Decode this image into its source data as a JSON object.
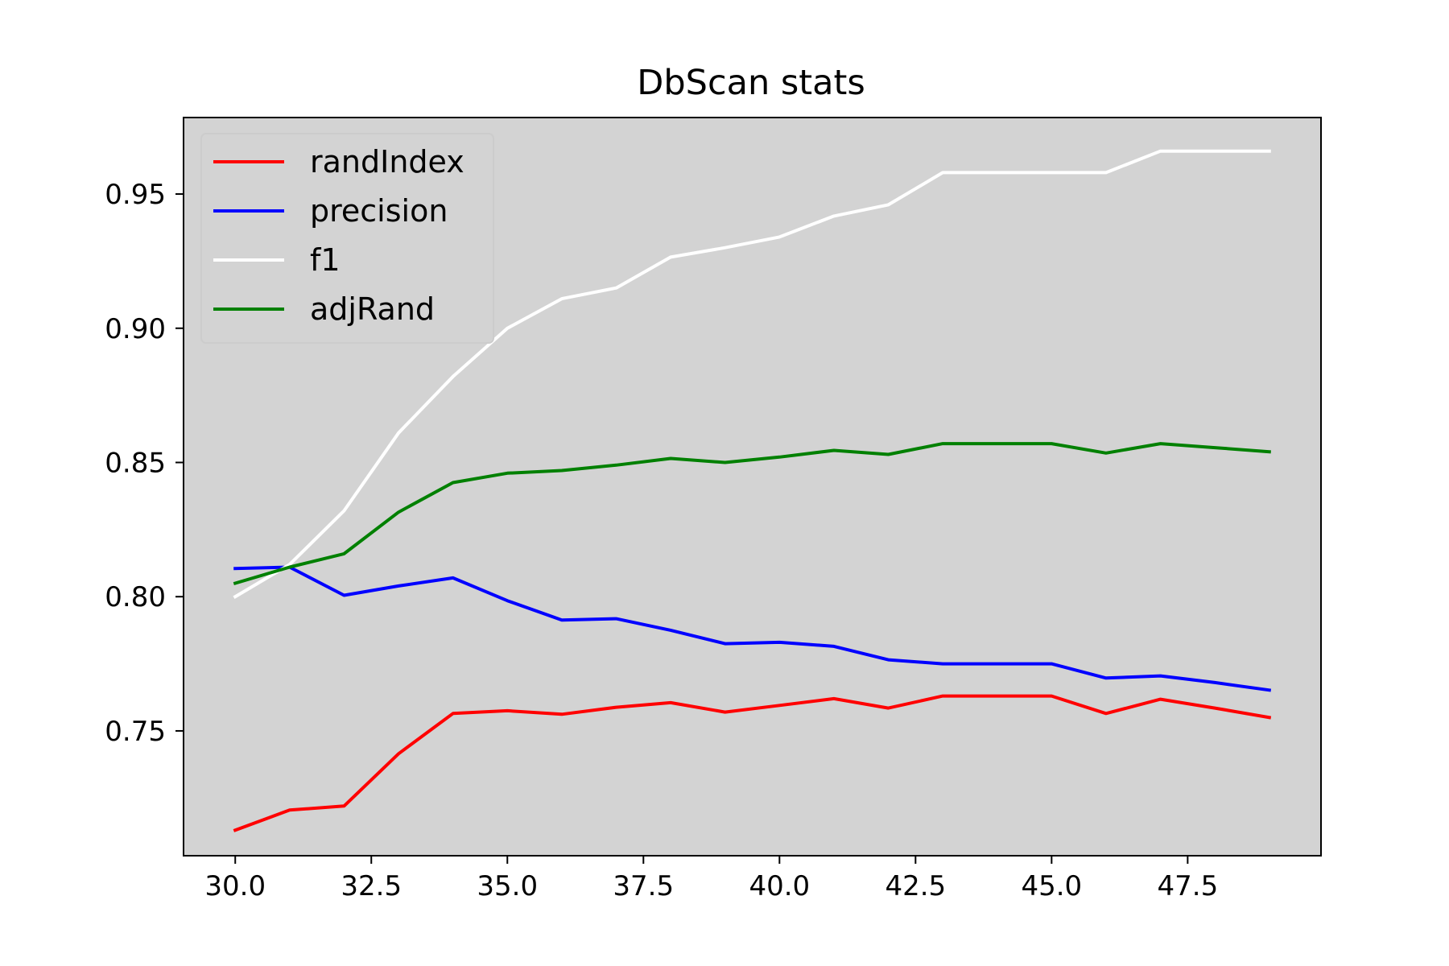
{
  "chart_data": {
    "type": "line",
    "title": "DbScan stats",
    "xlabel": "",
    "ylabel": "",
    "xlim": [
      29.05,
      49.95
    ],
    "ylim": [
      0.7035,
      0.9785
    ],
    "xticks": [
      30.0,
      32.5,
      35.0,
      37.5,
      40.0,
      42.5,
      45.0,
      47.5
    ],
    "xtick_labels": [
      "30.0",
      "32.5",
      "35.0",
      "37.5",
      "40.0",
      "42.5",
      "45.0",
      "47.5"
    ],
    "yticks": [
      0.75,
      0.8,
      0.85,
      0.9,
      0.95
    ],
    "ytick_labels": [
      "0.75",
      "0.80",
      "0.85",
      "0.90",
      "0.95"
    ],
    "grid": false,
    "background": "#d3d3d3",
    "legend_position": "top-left",
    "x": [
      30,
      31,
      32,
      33,
      34,
      35,
      36,
      37,
      38,
      39,
      40,
      41,
      42,
      43,
      44,
      45,
      46,
      47,
      48,
      49
    ],
    "series": [
      {
        "name": "randIndex",
        "color": "#ff0000",
        "values": [
          0.713,
          0.7205,
          0.722,
          0.7415,
          0.7565,
          0.7575,
          0.7562,
          0.7588,
          0.7605,
          0.757,
          0.7595,
          0.762,
          0.7585,
          0.763,
          0.763,
          0.763,
          0.7565,
          0.7618,
          0.7585,
          0.755
        ]
      },
      {
        "name": "precision",
        "color": "#0000ff",
        "values": [
          0.8105,
          0.811,
          0.8005,
          0.804,
          0.807,
          0.7985,
          0.7913,
          0.7918,
          0.7875,
          0.7825,
          0.783,
          0.7815,
          0.7765,
          0.775,
          0.775,
          0.775,
          0.7697,
          0.7705,
          0.768,
          0.7652
        ]
      },
      {
        "name": "f1",
        "color": "#ffffff",
        "values": [
          0.8,
          0.812,
          0.832,
          0.861,
          0.882,
          0.9,
          0.911,
          0.915,
          0.9265,
          0.93,
          0.934,
          0.9418,
          0.946,
          0.958,
          0.958,
          0.958,
          0.958,
          0.966,
          0.966,
          0.966
        ]
      },
      {
        "name": "adjRand",
        "color": "#008000",
        "values": [
          0.805,
          0.811,
          0.816,
          0.8315,
          0.8425,
          0.846,
          0.847,
          0.849,
          0.8515,
          0.85,
          0.852,
          0.8545,
          0.853,
          0.857,
          0.857,
          0.857,
          0.8535,
          0.857,
          0.8555,
          0.854
        ]
      }
    ]
  }
}
